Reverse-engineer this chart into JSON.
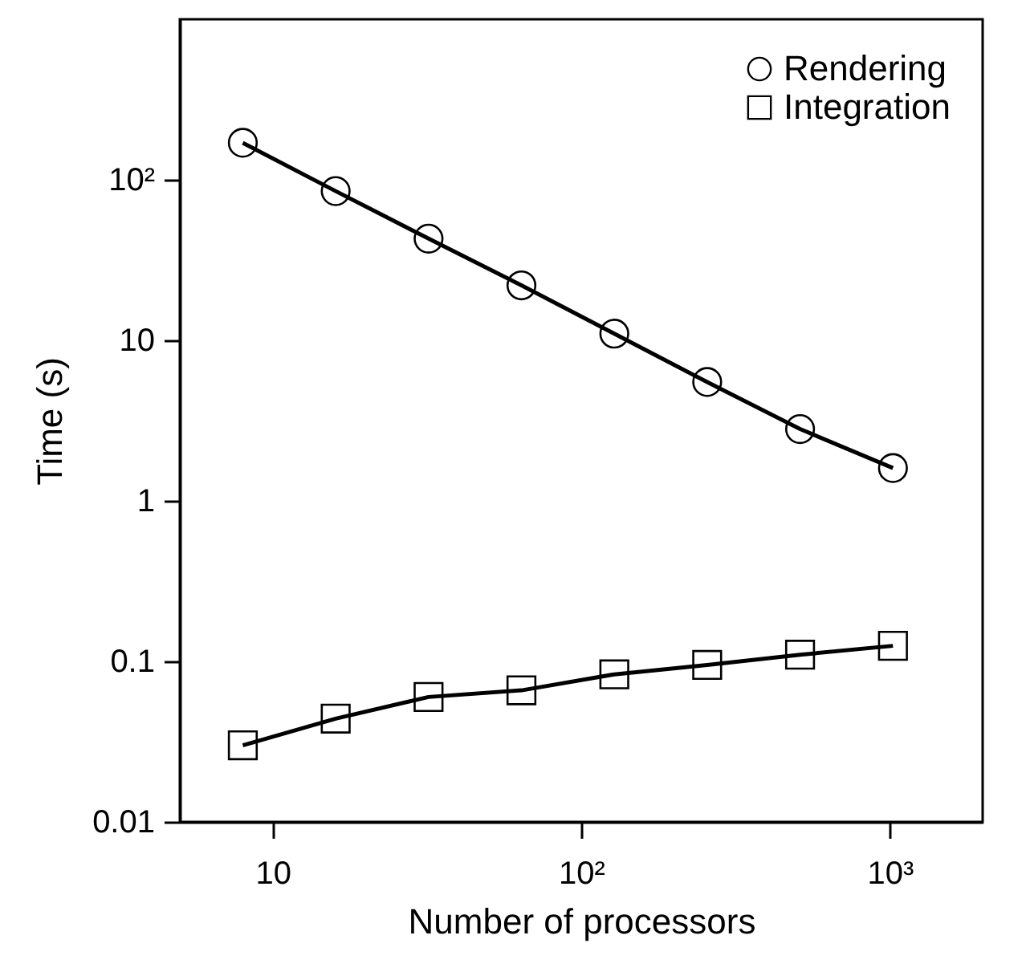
{
  "chart_data": {
    "type": "line",
    "xlabel": "Number of processors",
    "ylabel": "Time (s)",
    "log": "xy",
    "grid": false,
    "legend": "top right",
    "x": [
      8,
      16,
      32,
      64,
      128,
      256,
      512,
      1024
    ],
    "xlim": [
      5,
      2000
    ],
    "xticks": [
      10,
      {
        "value": 100,
        "label": "10²"
      },
      {
        "value": 1000,
        "label": "10³"
      }
    ],
    "ylim": [
      0.01,
      1000
    ],
    "yticks": [
      0.01,
      0.1,
      1,
      10,
      {
        "value": 100,
        "label": "10²"
      }
    ],
    "series": [
      {
        "name": "Rendering",
        "color": "#000000",
        "marker": "circle",
        "values": [
          170,
          85,
          43,
          22,
          11,
          5.5,
          2.8,
          1.6
        ]
      },
      {
        "name": "Integration",
        "color": "#000000",
        "marker": "square",
        "values": [
          0.03,
          0.044,
          0.06,
          0.066,
          0.083,
          0.095,
          0.11,
          0.125
        ]
      }
    ]
  }
}
